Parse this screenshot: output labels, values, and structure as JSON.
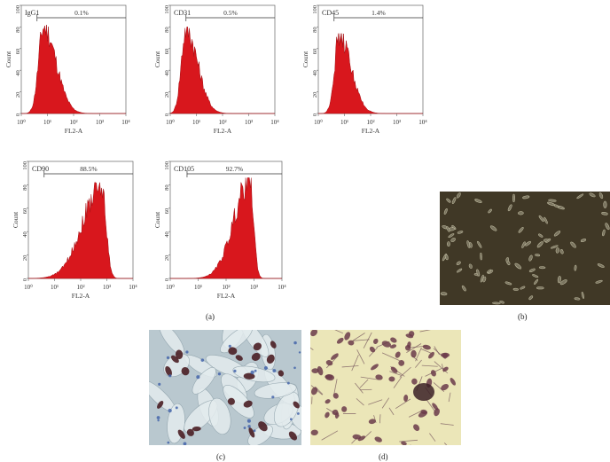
{
  "figure": {
    "panels": {
      "a": "(a)",
      "b": "(b)",
      "c": "(c)",
      "d": "(d)"
    }
  },
  "chart_data": [
    {
      "type": "area",
      "marker": "IgG1",
      "percent": "0.1%",
      "xlabel": "FL2-A",
      "ylabel": "Count",
      "xscale": "log",
      "xlim": [
        1,
        10000
      ],
      "ylim": [
        0,
        100
      ],
      "x_ticks": [
        "10⁰",
        "10¹",
        "10²",
        "10³",
        "10⁴"
      ],
      "y_ticks": [
        "0",
        "20",
        "40",
        "60",
        "80",
        "100"
      ],
      "gate": [
        4,
        10000
      ],
      "curve": {
        "peak_log": 0.85,
        "peak_count": 82,
        "spread": 0.32
      }
    },
    {
      "type": "area",
      "marker": "CD31",
      "percent": "0.5%",
      "xlabel": "FL2-A",
      "ylabel": "Count",
      "xscale": "log",
      "xlim": [
        1,
        10000
      ],
      "ylim": [
        0,
        100
      ],
      "x_ticks": [
        "10⁰",
        "10¹",
        "10²",
        "10³",
        "10⁴"
      ],
      "y_ticks": [
        "0",
        "20",
        "40",
        "60",
        "80",
        "100"
      ],
      "gate": [
        4,
        10000
      ],
      "curve": {
        "peak_log": 0.6,
        "peak_count": 80,
        "spread": 0.3
      }
    },
    {
      "type": "area",
      "marker": "CD45",
      "percent": "1.4%",
      "xlabel": "FL2-A",
      "ylabel": "Count",
      "xscale": "log",
      "xlim": [
        1,
        10000
      ],
      "ylim": [
        0,
        100
      ],
      "x_ticks": [
        "10⁰",
        "10¹",
        "10²",
        "10³",
        "10⁴"
      ],
      "y_ticks": [
        "0",
        "20",
        "40",
        "60",
        "80",
        "100"
      ],
      "gate": [
        4,
        10000
      ],
      "curve": {
        "peak_log": 0.8,
        "peak_count": 74,
        "spread": 0.3
      }
    },
    {
      "type": "area",
      "marker": "CD90",
      "percent": "88.5%",
      "xlabel": "FL2-A",
      "ylabel": "Count",
      "xscale": "log",
      "xlim": [
        1,
        10000
      ],
      "ylim": [
        0,
        100
      ],
      "x_ticks": [
        "10⁰",
        "10¹",
        "10²",
        "10³",
        "10⁴"
      ],
      "y_ticks": [
        "0",
        "20",
        "40",
        "60",
        "80",
        "100"
      ],
      "gate": [
        4,
        10000
      ],
      "curve": {
        "peak_log": 2.8,
        "peak_count": 82,
        "spread": 0.38,
        "left_skew": true
      }
    },
    {
      "type": "area",
      "marker": "CD105",
      "percent": "92.7%",
      "xlabel": "FL2-A",
      "ylabel": "Count",
      "xscale": "log",
      "xlim": [
        1,
        10000
      ],
      "ylim": [
        0,
        100
      ],
      "x_ticks": [
        "10⁰",
        "10¹",
        "10²",
        "10³",
        "10⁴"
      ],
      "y_ticks": [
        "0",
        "20",
        "40",
        "60",
        "80",
        "100"
      ],
      "gate": [
        4,
        10000
      ],
      "curve": {
        "peak_log": 2.85,
        "peak_count": 86,
        "spread": 0.3,
        "left_skew": true
      }
    }
  ],
  "colors": {
    "histogram_fill": "#d8171d",
    "histogram_edge": "#a30d12",
    "micrograph_b_bg": "#4a3f2c",
    "micrograph_c_bg": "#b9c8cf",
    "micrograph_d_bg": "#ebe6b8"
  }
}
